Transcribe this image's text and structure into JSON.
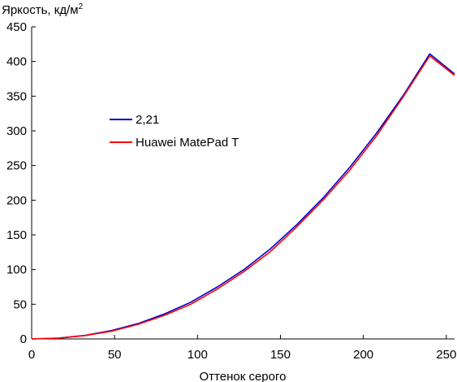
{
  "chart_data": {
    "type": "line",
    "ylabel": "Яркость, кд/м",
    "ylabel_superscript": "2",
    "xlabel": "Оттенок серого",
    "xlim": [
      0,
      255
    ],
    "ylim": [
      0,
      450
    ],
    "xticks": [
      0,
      50,
      100,
      150,
      200,
      250
    ],
    "yticks": [
      0,
      50,
      100,
      150,
      200,
      250,
      300,
      350,
      400,
      450
    ],
    "grid": false,
    "legend_position": "upper-left (inside plot)",
    "series": [
      {
        "name": "2,21",
        "color": "#0000cc",
        "x": [
          0,
          16,
          32,
          48,
          64,
          80,
          96,
          112,
          128,
          144,
          160,
          176,
          192,
          208,
          224,
          240,
          255
        ],
        "y": [
          0,
          1.1,
          5,
          11.9,
          22,
          36,
          53,
          75,
          100,
          130,
          165,
          204,
          248,
          297,
          351,
          411,
          382
        ]
      },
      {
        "name": "Huawei MatePad T",
        "color": "#ff0000",
        "x": [
          0,
          16,
          32,
          48,
          64,
          80,
          96,
          112,
          128,
          144,
          160,
          176,
          192,
          208,
          224,
          240,
          255
        ],
        "y": [
          0,
          1,
          4.8,
          11,
          21,
          34,
          50,
          72,
          97,
          126,
          162,
          201,
          244,
          293,
          349,
          408,
          380
        ]
      }
    ]
  }
}
